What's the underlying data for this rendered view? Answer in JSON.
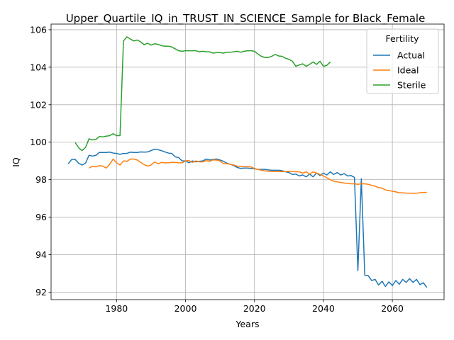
{
  "chart_data": {
    "type": "line",
    "title": "Upper_Quartile_IQ_in_TRUST_IN_SCIENCE_Sample for Black_Female",
    "xlabel": "Years",
    "ylabel": "IQ",
    "xlim": [
      1961,
      2075
    ],
    "ylim": [
      91.6,
      106.3
    ],
    "xticks": [
      1980,
      2000,
      2020,
      2040,
      2060
    ],
    "yticks": [
      92,
      94,
      96,
      98,
      100,
      102,
      104,
      106
    ],
    "grid": true,
    "legend": {
      "title": "Fertility",
      "position": "top-right"
    },
    "series": [
      {
        "name": "Actual",
        "color": "#1f77b4",
        "x": [
          1966,
          1967,
          1968,
          1969,
          1970,
          1971,
          1972,
          1973,
          1974,
          1975,
          1976,
          1977,
          1978,
          1979,
          1980,
          1981,
          1982,
          1983,
          1984,
          1985,
          1986,
          1987,
          1988,
          1989,
          1990,
          1991,
          1992,
          1993,
          1994,
          1995,
          1996,
          1997,
          1998,
          1999,
          2000,
          2001,
          2002,
          2003,
          2004,
          2005,
          2006,
          2007,
          2008,
          2009,
          2010,
          2011,
          2012,
          2013,
          2014,
          2015,
          2016,
          2017,
          2018,
          2019,
          2020,
          2021,
          2022,
          2023,
          2024,
          2025,
          2026,
          2027,
          2028,
          2029,
          2030,
          2031,
          2032,
          2033,
          2034,
          2035,
          2036,
          2037,
          2038,
          2039,
          2040,
          2041,
          2042,
          2043,
          2044,
          2045,
          2046,
          2047,
          2048,
          2049,
          2050,
          2051,
          2052,
          2053,
          2054,
          2055,
          2056,
          2057,
          2058,
          2059,
          2060,
          2061,
          2062,
          2063,
          2064,
          2065,
          2066,
          2067,
          2068,
          2069,
          2070
        ],
        "y": [
          98.85,
          99.08,
          99.08,
          98.88,
          98.78,
          98.88,
          99.3,
          99.26,
          99.3,
          99.45,
          99.45,
          99.45,
          99.47,
          99.42,
          99.4,
          99.35,
          99.4,
          99.4,
          99.47,
          99.45,
          99.45,
          99.48,
          99.47,
          99.48,
          99.55,
          99.63,
          99.6,
          99.55,
          99.48,
          99.42,
          99.4,
          99.22,
          99.18,
          99.0,
          99.0,
          98.9,
          99.0,
          98.95,
          98.98,
          99.0,
          99.1,
          99.05,
          99.08,
          99.1,
          99.05,
          98.98,
          98.88,
          98.82,
          98.75,
          98.65,
          98.6,
          98.62,
          98.62,
          98.6,
          98.58,
          98.55,
          98.55,
          98.55,
          98.52,
          98.5,
          98.5,
          98.5,
          98.48,
          98.42,
          98.38,
          98.28,
          98.3,
          98.2,
          98.25,
          98.15,
          98.3,
          98.15,
          98.35,
          98.22,
          98.35,
          98.25,
          98.42,
          98.28,
          98.38,
          98.25,
          98.32,
          98.2,
          98.22,
          98.12,
          93.15,
          98.05,
          92.9,
          92.88,
          92.62,
          92.68,
          92.38,
          92.58,
          92.3,
          92.55,
          92.35,
          92.62,
          92.42,
          92.68,
          92.52,
          92.72,
          92.52,
          92.68,
          92.4,
          92.5,
          92.25
        ]
      },
      {
        "name": "Ideal",
        "color": "#ff7f0e",
        "x": [
          1972,
          1973,
          1974,
          1975,
          1976,
          1977,
          1978,
          1979,
          1980,
          1981,
          1982,
          1983,
          1984,
          1985,
          1986,
          1987,
          1988,
          1989,
          1990,
          1991,
          1992,
          1993,
          1994,
          1995,
          1996,
          1997,
          1998,
          1999,
          2000,
          2001,
          2002,
          2003,
          2004,
          2005,
          2006,
          2007,
          2008,
          2009,
          2010,
          2011,
          2012,
          2013,
          2014,
          2015,
          2016,
          2017,
          2018,
          2019,
          2020,
          2021,
          2022,
          2023,
          2024,
          2025,
          2026,
          2027,
          2028,
          2029,
          2030,
          2031,
          2032,
          2033,
          2034,
          2035,
          2036,
          2037,
          2038,
          2039,
          2040,
          2041,
          2042,
          2043,
          2044,
          2045,
          2046,
          2047,
          2048,
          2049,
          2050,
          2051,
          2052,
          2053,
          2054,
          2055,
          2056,
          2057,
          2058,
          2059,
          2060,
          2061,
          2062,
          2063,
          2064,
          2065,
          2066,
          2067,
          2068,
          2069,
          2070
        ],
        "y": [
          98.62,
          98.72,
          98.68,
          98.75,
          98.72,
          98.62,
          98.82,
          99.1,
          98.9,
          98.78,
          99.0,
          98.98,
          99.1,
          99.1,
          99.05,
          98.92,
          98.8,
          98.72,
          98.78,
          98.95,
          98.85,
          98.92,
          98.9,
          98.9,
          98.92,
          98.92,
          98.9,
          98.9,
          99.0,
          99.02,
          98.92,
          99.0,
          98.95,
          98.95,
          99.02,
          98.98,
          99.05,
          99.05,
          99.0,
          98.85,
          98.85,
          98.82,
          98.78,
          98.72,
          98.7,
          98.7,
          98.7,
          98.68,
          98.6,
          98.55,
          98.5,
          98.47,
          98.45,
          98.43,
          98.43,
          98.43,
          98.43,
          98.43,
          98.45,
          98.43,
          98.42,
          98.42,
          98.35,
          98.42,
          98.3,
          98.42,
          98.35,
          98.28,
          98.2,
          98.1,
          98.0,
          97.92,
          97.88,
          97.85,
          97.82,
          97.8,
          97.78,
          97.78,
          97.75,
          97.78,
          97.78,
          97.75,
          97.7,
          97.65,
          97.58,
          97.55,
          97.45,
          97.42,
          97.38,
          97.35,
          97.3,
          97.3,
          97.28,
          97.28,
          97.28,
          97.28,
          97.3,
          97.32,
          97.32
        ]
      },
      {
        "name": "Sterile",
        "color": "#2ca02c",
        "x": [
          1968,
          1969,
          1970,
          1971,
          1972,
          1973,
          1974,
          1975,
          1976,
          1977,
          1978,
          1979,
          1980,
          1981,
          1982,
          1983,
          1984,
          1985,
          1986,
          1987,
          1988,
          1989,
          1990,
          1991,
          1992,
          1993,
          1994,
          1995,
          1996,
          1997,
          1998,
          1999,
          2000,
          2001,
          2002,
          2003,
          2004,
          2005,
          2006,
          2007,
          2008,
          2009,
          2010,
          2011,
          2012,
          2013,
          2014,
          2015,
          2016,
          2017,
          2018,
          2019,
          2020,
          2021,
          2022,
          2023,
          2024,
          2025,
          2026,
          2027,
          2028,
          2029,
          2030,
          2031,
          2032,
          2033,
          2034,
          2035,
          2036,
          2037,
          2038,
          2039,
          2040,
          2041,
          2042
        ],
        "y": [
          99.98,
          99.7,
          99.55,
          99.72,
          100.18,
          100.12,
          100.15,
          100.3,
          100.28,
          100.32,
          100.35,
          100.45,
          100.35,
          100.35,
          105.4,
          105.62,
          105.5,
          105.4,
          105.45,
          105.35,
          105.2,
          105.28,
          105.18,
          105.25,
          105.22,
          105.15,
          105.12,
          105.12,
          105.08,
          104.98,
          104.88,
          104.85,
          104.88,
          104.88,
          104.88,
          104.88,
          104.82,
          104.85,
          104.82,
          104.82,
          104.75,
          104.78,
          104.78,
          104.75,
          104.8,
          104.8,
          104.82,
          104.85,
          104.8,
          104.85,
          104.88,
          104.88,
          104.85,
          104.7,
          104.58,
          104.52,
          104.52,
          104.58,
          104.68,
          104.6,
          104.58,
          104.48,
          104.42,
          104.32,
          104.05,
          104.12,
          104.18,
          104.05,
          104.15,
          104.28,
          104.15,
          104.32,
          104.05,
          104.1,
          104.28
        ]
      }
    ]
  }
}
